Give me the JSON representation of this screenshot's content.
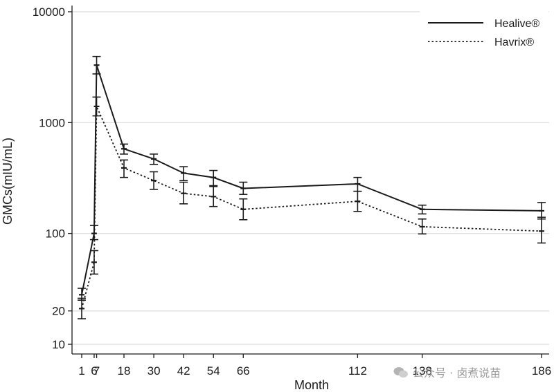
{
  "chart_data": {
    "type": "line",
    "xlabel": "Month",
    "ylabel": "GMCs(mIU/mL)",
    "y_scale": "log",
    "ylim": [
      8,
      10000
    ],
    "xlim": [
      -2,
      186
    ],
    "x_ticks": [
      {
        "value": 1,
        "label": "1"
      },
      {
        "value": 6,
        "label": "6"
      },
      {
        "value": 7,
        "label": "7"
      },
      {
        "value": 18,
        "label": "18"
      },
      {
        "value": 30,
        "label": "30"
      },
      {
        "value": 42,
        "label": "42"
      },
      {
        "value": 54,
        "label": "54"
      },
      {
        "value": 66,
        "label": "66"
      },
      {
        "value": 112,
        "label": "112"
      },
      {
        "value": 138,
        "label": "138"
      },
      {
        "value": 186,
        "label": "186"
      }
    ],
    "y_ticks": [
      {
        "value": 10000,
        "label": "10000"
      },
      {
        "value": 1000,
        "label": "1000"
      },
      {
        "value": 100,
        "label": "100"
      },
      {
        "value": 20,
        "label": "20"
      },
      {
        "value": 10,
        "label": "10"
      }
    ],
    "gridlines": [
      10000,
      1000,
      100,
      20,
      10
    ],
    "grid": "horizontal",
    "legend_position": "top-right",
    "series": [
      {
        "name": "Healive®",
        "style": "solid",
        "color": "#1a1a1a",
        "x": [
          1,
          6,
          7,
          18,
          30,
          42,
          54,
          66,
          112,
          138,
          186
        ],
        "y": [
          28,
          100,
          3300,
          580,
          470,
          350,
          320,
          255,
          280,
          165,
          160
        ],
        "ci_low": [
          25,
          88,
          2750,
          520,
          420,
          300,
          270,
          225,
          240,
          150,
          135
        ],
        "ci_high": [
          32,
          118,
          3950,
          640,
          520,
          400,
          370,
          290,
          320,
          180,
          190
        ]
      },
      {
        "name": "Havrix®",
        "style": "dotted",
        "color": "#1a1a1a",
        "x": [
          1,
          6,
          7,
          18,
          30,
          42,
          54,
          66,
          112,
          138,
          186
        ],
        "y": [
          21,
          55,
          1400,
          390,
          300,
          230,
          215,
          165,
          195,
          115,
          105
        ],
        "ci_low": [
          17,
          43,
          1150,
          320,
          250,
          185,
          175,
          133,
          158,
          99,
          82
        ],
        "ci_high": [
          26,
          70,
          1700,
          460,
          360,
          290,
          265,
          205,
          240,
          135,
          140
        ]
      }
    ]
  },
  "watermark": {
    "text": "公众号 · 卤煮说苗"
  }
}
